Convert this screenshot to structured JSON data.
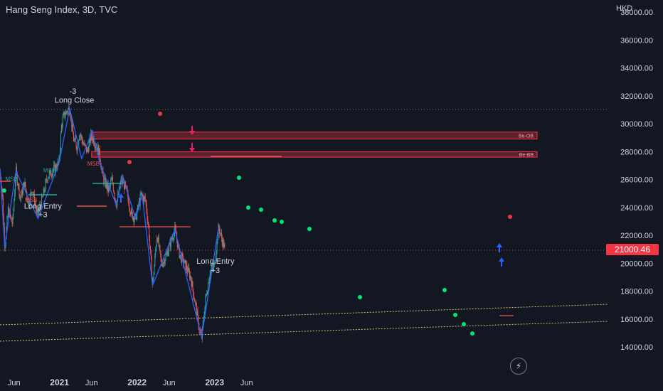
{
  "header": {
    "title": "Hang Seng Index, 3D, TVC",
    "currency": "HKD",
    "last_price": "21000.46"
  },
  "colors": {
    "background": "#131722",
    "up": "#26a69a",
    "down": "#ef5350",
    "zigzag": "#2962ff",
    "ob_fill": "#f2364555",
    "label_green": "#26a69a",
    "label_red": "#ef5350"
  },
  "chart_data": {
    "type": "candlestick",
    "x": [
      "Jun",
      "2021",
      "Jun",
      "2022",
      "Jun",
      "2023",
      "Jun"
    ],
    "ylim": [
      13400,
      39000
    ],
    "y_ticks": [
      "14000.00",
      "16000.00",
      "18000.00",
      "20000.00",
      "22000.00",
      "24000.00",
      "26000.00",
      "28000.00",
      "30000.00",
      "32000.00",
      "34000.00",
      "36000.00",
      "38000.00"
    ],
    "grid": false,
    "price_path": [
      [
        "2020-03-27",
        26400
      ],
      [
        "2020-04-06",
        25300
      ],
      [
        "2020-04-18",
        21200
      ],
      [
        "2020-05-05",
        23800
      ],
      [
        "2020-05-25",
        22800
      ],
      [
        "2020-06-10",
        26600
      ],
      [
        "2020-07-02",
        24600
      ],
      [
        "2020-07-20",
        25800
      ],
      [
        "2020-08-08",
        24200
      ],
      [
        "2020-08-25",
        25400
      ],
      [
        "2020-09-18",
        23400
      ],
      [
        "2020-10-10",
        24500
      ],
      [
        "2020-11-05",
        26200
      ],
      [
        "2020-12-05",
        26700
      ],
      [
        "2020-12-30",
        27200
      ],
      [
        "2021-01-10",
        29800
      ],
      [
        "2021-01-20",
        30500
      ],
      [
        "2021-02-04",
        30900
      ],
      [
        "2021-02-18",
        31100
      ],
      [
        "2021-03-08",
        28900
      ],
      [
        "2021-03-25",
        28300
      ],
      [
        "2021-04-05",
        29400
      ],
      [
        "2021-04-22",
        28600
      ],
      [
        "2021-05-12",
        28000
      ],
      [
        "2021-05-30",
        29200
      ],
      [
        "2021-06-20",
        28500
      ],
      [
        "2021-07-05",
        28100
      ],
      [
        "2021-07-25",
        26100
      ],
      [
        "2021-08-20",
        25200
      ],
      [
        "2021-09-05",
        26000
      ],
      [
        "2021-09-25",
        24200
      ],
      [
        "2021-10-20",
        26000
      ],
      [
        "2021-11-10",
        25300
      ],
      [
        "2021-12-05",
        23500
      ],
      [
        "2021-12-25",
        23200
      ],
      [
        "2022-01-20",
        24900
      ],
      [
        "2022-02-10",
        24500
      ],
      [
        "2022-02-25",
        22400
      ],
      [
        "2022-03-15",
        18400
      ],
      [
        "2022-04-05",
        22100
      ],
      [
        "2022-04-26",
        19900
      ],
      [
        "2022-05-20",
        20600
      ],
      [
        "2022-06-12",
        21700
      ],
      [
        "2022-06-28",
        22400
      ],
      [
        "2022-07-20",
        20600
      ],
      [
        "2022-08-15",
        19900
      ],
      [
        "2022-09-10",
        19000
      ],
      [
        "2022-10-01",
        17200
      ],
      [
        "2022-10-24",
        15000
      ],
      [
        "2022-11-01",
        14700
      ],
      [
        "2022-11-20",
        17500
      ],
      [
        "2022-12-10",
        19400
      ],
      [
        "2022-12-31",
        19800
      ],
      [
        "2023-01-20",
        22600
      ],
      [
        "2023-02-08",
        21500
      ],
      [
        "2023-02-18",
        21000
      ]
    ],
    "zigzag": [
      [
        "2020-03-27",
        26800
      ],
      [
        "2020-04-18",
        21200
      ],
      [
        "2020-06-10",
        26600
      ],
      [
        "2020-09-22",
        23200
      ],
      [
        "2020-12-30",
        27200
      ],
      [
        "2021-02-18",
        31100
      ],
      [
        "2021-04-15",
        27500
      ],
      [
        "2021-06-05",
        29500
      ],
      [
        "2021-07-10",
        27200
      ],
      [
        "2021-09-25",
        24200
      ],
      [
        "2021-10-25",
        26200
      ],
      [
        "2021-12-25",
        23200
      ],
      [
        "2022-01-25",
        24900
      ],
      [
        "2022-03-15",
        18400
      ],
      [
        "2022-06-28",
        22400
      ],
      [
        "2022-11-01",
        14700
      ],
      [
        "2023-01-20",
        22600
      ]
    ],
    "zones": [
      {
        "label": "Be-OB",
        "from": "2021-06-01",
        "y_top": 29400,
        "y_bottom": 28900
      },
      {
        "label": "Be-BB",
        "from": "2021-06-01",
        "y_top": 28000,
        "y_bottom": 27600
      }
    ],
    "annotations": [
      {
        "text": "MSB",
        "color": "green",
        "date": "2020-05-20",
        "y": 25900
      },
      {
        "text": "MSB",
        "color": "red",
        "date": "2020-08-20",
        "y": 24400
      },
      {
        "text": "MSB",
        "color": "green",
        "date": "2020-11-15",
        "y": 26500
      },
      {
        "text": "MSB",
        "color": "red",
        "date": "2021-06-10",
        "y": 27000
      },
      {
        "text": "Long Entry",
        "date": "2020-10-15",
        "y": 23900
      },
      {
        "text": "+3",
        "date": "2020-10-15",
        "y": 23300
      },
      {
        "text": "-3",
        "date": "2021-03-05",
        "y": 32150
      },
      {
        "text": "Long Close",
        "date": "2021-03-12",
        "y": 31500
      },
      {
        "text": "Long Entry",
        "date": "2023-01-05",
        "y": 19950
      },
      {
        "text": "+3",
        "date": "2023-01-05",
        "y": 19300
      }
    ]
  }
}
